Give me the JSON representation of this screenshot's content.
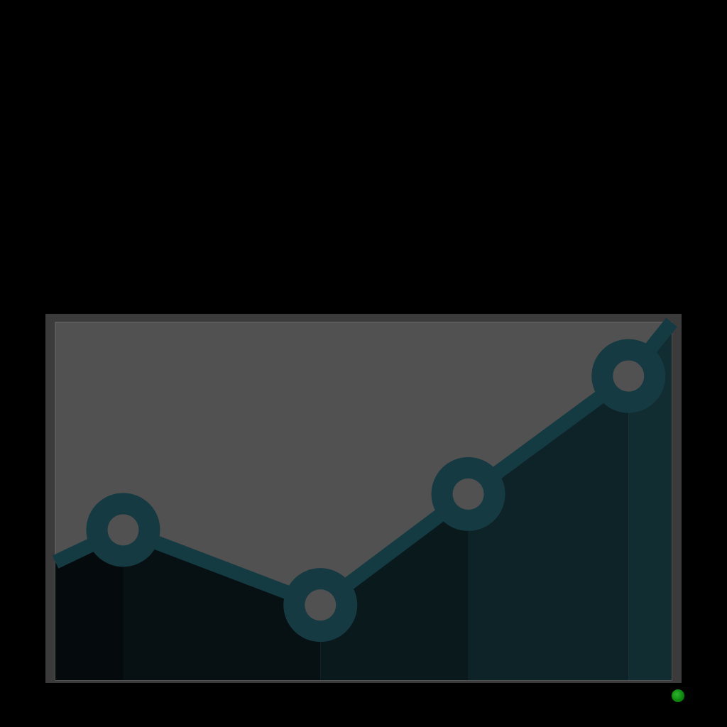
{
  "colors": {
    "background": "#000000",
    "frame": "#3b3b3b",
    "plot_background": "#515151",
    "line": "#143a42",
    "marker_ring": "#153a42",
    "marker_center": "#515151",
    "status_indicator": "#0a8a0a"
  },
  "status_indicator": {
    "icon": "green-dot-icon"
  },
  "chart_data": {
    "type": "line",
    "title": "",
    "xlabel": "",
    "ylabel": "",
    "grid": false,
    "legend": "none",
    "area_fill": true,
    "ylim": [
      0,
      100
    ],
    "xlim": [
      0,
      100
    ],
    "series": [
      {
        "points": [
          {
            "x": 0,
            "y": 33
          },
          {
            "x": 11,
            "y": 42
          },
          {
            "x": 43,
            "y": 21
          },
          {
            "x": 67,
            "y": 52
          },
          {
            "x": 93,
            "y": 85
          },
          {
            "x": 100,
            "y": 100
          }
        ],
        "markers": [
          {
            "x": 11,
            "y": 42
          },
          {
            "x": 43,
            "y": 21
          },
          {
            "x": 67,
            "y": 52
          },
          {
            "x": 93,
            "y": 85
          }
        ]
      }
    ]
  }
}
